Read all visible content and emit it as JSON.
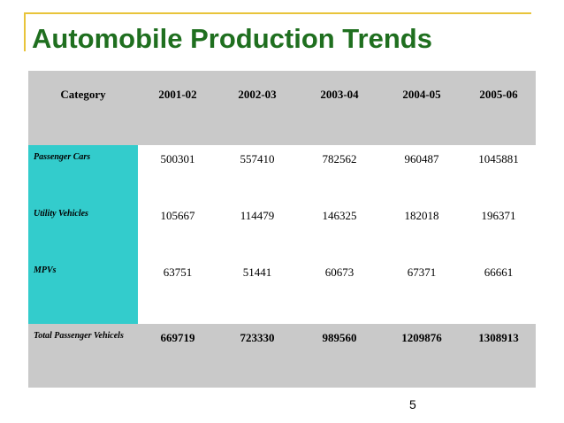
{
  "title": "Automobile Production Trends",
  "table": {
    "headers": [
      "Category",
      "2001-02",
      "2002-03",
      "2003-04",
      "2004-05",
      "2005-06"
    ],
    "rows": [
      {
        "category": "Passenger Cars",
        "values": [
          "500301",
          "557410",
          "782562",
          "960487",
          "1045881"
        ]
      },
      {
        "category": "Utility Vehicles",
        "values": [
          "105667",
          "114479",
          "146325",
          "182018",
          "196371"
        ]
      },
      {
        "category": "MPVs",
        "values": [
          "63751",
          "51441",
          "60673",
          "67371",
          "66661"
        ]
      },
      {
        "category": "Total Passenger Vehicels",
        "values": [
          "669719",
          "723330",
          "989560",
          "1209876",
          "1308913"
        ]
      }
    ]
  },
  "page_number": "5",
  "colors": {
    "accent_line": "#e8c43a",
    "title": "#1f6f1f",
    "category_fill": "#33cccc",
    "header_fill": "#c9c9c9"
  }
}
